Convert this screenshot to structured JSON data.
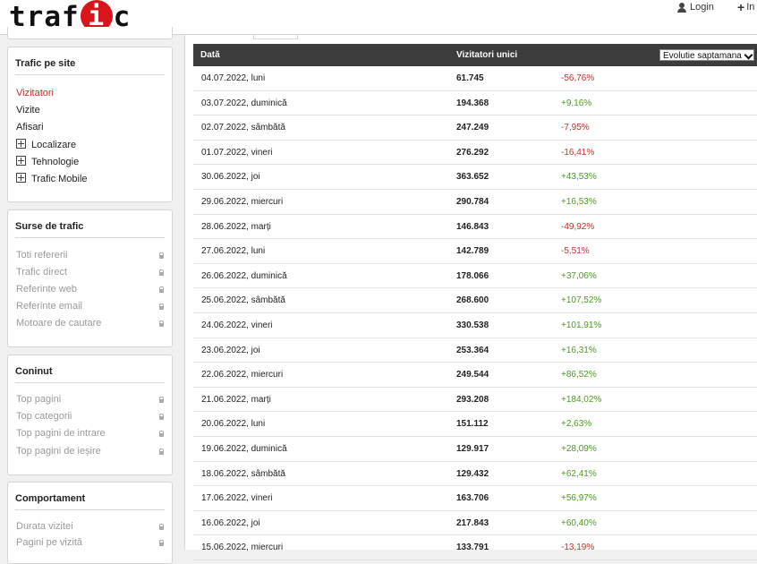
{
  "header": {
    "logo_text_left": "traf",
    "logo_text_disc": "i",
    "logo_text_right": "c",
    "login_label": "Login",
    "plus_label": "In"
  },
  "sidebar": {
    "traffic": {
      "title": "Trafic pe site",
      "items": [
        {
          "label": "Vizitatori",
          "state": "active"
        },
        {
          "label": "Vizite",
          "state": "normal"
        },
        {
          "label": "Afisari",
          "state": "normal"
        },
        {
          "label": "Localizare",
          "state": "expandable"
        },
        {
          "label": "Tehnologie",
          "state": "expandable"
        },
        {
          "label": "Trafic Mobile",
          "state": "expandable"
        }
      ]
    },
    "sources": {
      "title": "Surse de trafic",
      "items": [
        "Toti refererii",
        "Trafic direct",
        "Referinte web",
        "Referinte email",
        "Motoare de cautare"
      ]
    },
    "content": {
      "title": "Coninut",
      "items": [
        "Top pagini",
        "Top categorii",
        "Top pagini de intrare",
        "Top pagini de ieșire"
      ]
    },
    "behavior": {
      "title": "Comportament",
      "items": [
        "Durata vizitei",
        "Pagini pe vizită"
      ]
    }
  },
  "table": {
    "col_date": "Dată",
    "col_visitors": "Vizitatori unici",
    "select_value": "Evolutie saptamana",
    "rows": [
      {
        "date": "04.07.2022, luni",
        "visitors": "61.745",
        "change": "-56,76%",
        "trend": "neg"
      },
      {
        "date": "03.07.2022, duminică",
        "visitors": "194.368",
        "change": "+9,16%",
        "trend": "pos"
      },
      {
        "date": "02.07.2022, sâmbătă",
        "visitors": "247.249",
        "change": "-7,95%",
        "trend": "neg"
      },
      {
        "date": "01.07.2022, vineri",
        "visitors": "276.292",
        "change": "-16,41%",
        "trend": "neg"
      },
      {
        "date": "30.06.2022, joi",
        "visitors": "363.652",
        "change": "+43,53%",
        "trend": "pos"
      },
      {
        "date": "29.06.2022, miercuri",
        "visitors": "290.784",
        "change": "+16,53%",
        "trend": "pos"
      },
      {
        "date": "28.06.2022, marți",
        "visitors": "146.843",
        "change": "-49,92%",
        "trend": "neg"
      },
      {
        "date": "27.06.2022, luni",
        "visitors": "142.789",
        "change": "-5,51%",
        "trend": "neg"
      },
      {
        "date": "26.06.2022, duminică",
        "visitors": "178.066",
        "change": "+37,06%",
        "trend": "pos"
      },
      {
        "date": "25.06.2022, sâmbătă",
        "visitors": "268.600",
        "change": "+107,52%",
        "trend": "pos"
      },
      {
        "date": "24.06.2022, vineri",
        "visitors": "330.538",
        "change": "+101,91%",
        "trend": "pos"
      },
      {
        "date": "23.06.2022, joi",
        "visitors": "253.364",
        "change": "+16,31%",
        "trend": "pos"
      },
      {
        "date": "22.06.2022, miercuri",
        "visitors": "249.544",
        "change": "+86,52%",
        "trend": "pos"
      },
      {
        "date": "21.06.2022, marți",
        "visitors": "293.208",
        "change": "+184,02%",
        "trend": "pos"
      },
      {
        "date": "20.06.2022, luni",
        "visitors": "151.112",
        "change": "+2,63%",
        "trend": "pos"
      },
      {
        "date": "19.06.2022, duminică",
        "visitors": "129.917",
        "change": "+28,09%",
        "trend": "pos"
      },
      {
        "date": "18.06.2022, sâmbătă",
        "visitors": "129.432",
        "change": "+62,41%",
        "trend": "pos"
      },
      {
        "date": "17.06.2022, vineri",
        "visitors": "163.706",
        "change": "+56,97%",
        "trend": "pos"
      },
      {
        "date": "16.06.2022, joi",
        "visitors": "217.843",
        "change": "+60,40%",
        "trend": "pos"
      },
      {
        "date": "15.06.2022, miercuri",
        "visitors": "133.791",
        "change": "-13,19%",
        "trend": "neg"
      }
    ]
  },
  "colors": {
    "accent_red": "#c0302a",
    "positive_green": "#4c9a24",
    "header_dark": "#3c3c3c"
  }
}
